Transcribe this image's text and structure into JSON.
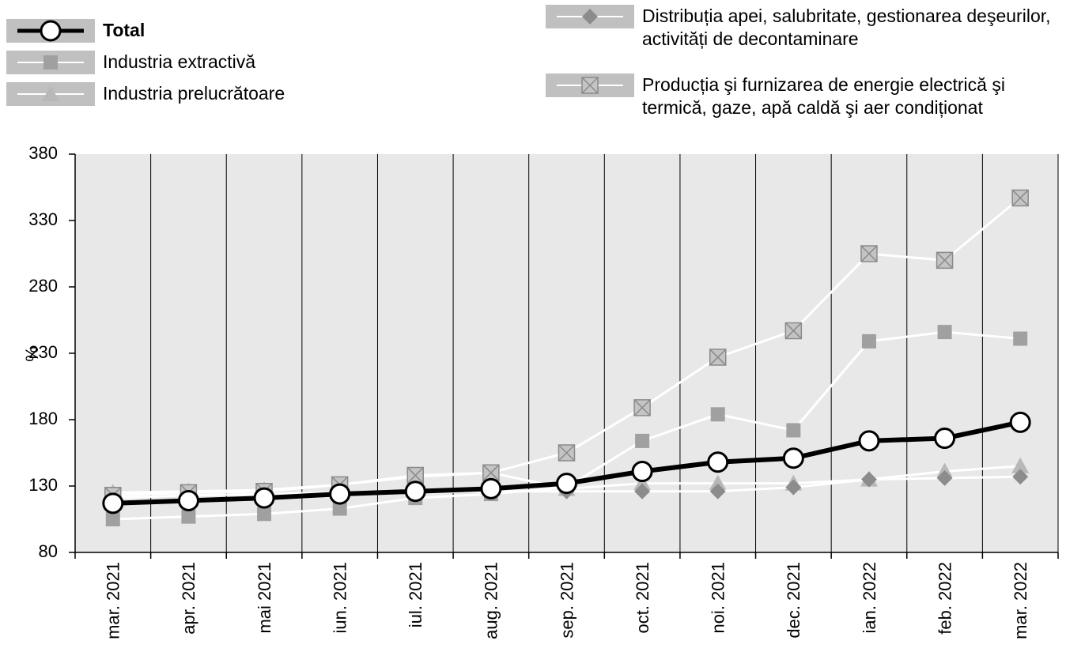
{
  "chart_data": {
    "type": "line",
    "y_label": "%",
    "categories": [
      "mar. 2021",
      "apr. 2021",
      "mai 2021",
      "iun. 2021",
      "iul. 2021",
      "aug. 2021",
      "sep. 2021",
      "oct. 2021",
      "noi. 2021",
      "dec. 2021",
      "ian. 2022",
      "feb. 2022",
      "mar. 2022"
    ],
    "ylim": [
      80,
      380
    ],
    "yticks": [
      80,
      130,
      180,
      230,
      280,
      330,
      380
    ],
    "grid": true,
    "series": [
      {
        "name": "Total",
        "color": "#000000",
        "marker": "circle",
        "values": [
          117,
          119,
          121,
          124,
          126,
          128,
          132,
          141,
          148,
          151,
          164,
          166,
          178
        ]
      },
      {
        "name": "Industria extractivă",
        "color": "#a0a0a0",
        "marker": "square",
        "values": [
          105,
          107,
          109,
          113,
          121,
          124,
          129,
          164,
          184,
          172,
          239,
          246,
          241
        ]
      },
      {
        "name": "Industria prelucrătoare",
        "color": "#b8b8b8",
        "marker": "triangle",
        "values": [
          125,
          126,
          127,
          131,
          137,
          140,
          128,
          132,
          132,
          132,
          135,
          141,
          145
        ]
      },
      {
        "name": "Distribuția apei, salubritate, gestionarea deşeurilor, activități de decontaminare",
        "color": "#8c8c8c",
        "marker": "diamond",
        "values": [
          121,
          123,
          124,
          125,
          125,
          126,
          126,
          126,
          126,
          129,
          135,
          136,
          137
        ]
      },
      {
        "name": "Producția şi furnizarea de energie electrică şi termică, gaze, apă caldă şi aer condiționat",
        "color": "#c4c4c4",
        "marker": "xbox",
        "values": [
          123,
          125,
          126,
          131,
          138,
          140,
          155,
          189,
          227,
          247,
          305,
          300,
          347
        ]
      }
    ]
  }
}
